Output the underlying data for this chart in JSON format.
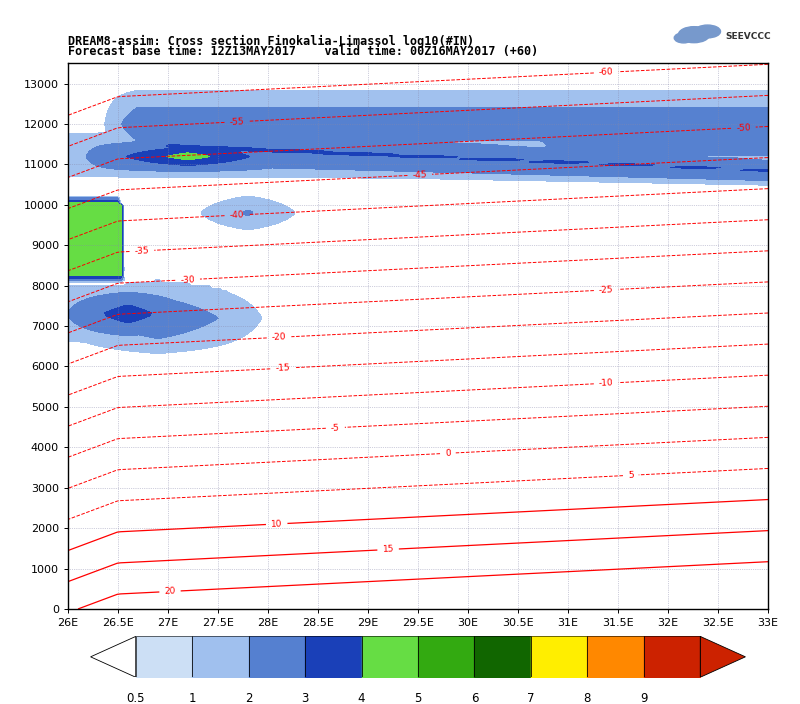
{
  "title_line1": "DREAM8-assim: Cross section Finokalia-Limassol log10(#IN)",
  "title_line2": "Forecast base time: 12Z13MAY2017    valid time: 00Z16MAY2017 (+60)",
  "x_min": 26.0,
  "x_max": 33.0,
  "y_min": 0,
  "y_max": 13500,
  "x_ticks": [
    26,
    26.5,
    27,
    27.5,
    28,
    28.5,
    29,
    29.5,
    30,
    30.5,
    31,
    31.5,
    32,
    32.5,
    33
  ],
  "x_tick_labels": [
    "26E",
    "26.5E",
    "27E",
    "27.5E",
    "28E",
    "28.5E",
    "29E",
    "29.5E",
    "30E",
    "30.5E",
    "31E",
    "31.5E",
    "32E",
    "32.5E",
    "33E"
  ],
  "y_ticks": [
    0,
    1000,
    2000,
    3000,
    4000,
    5000,
    6000,
    7000,
    8000,
    9000,
    10000,
    11000,
    12000,
    13000
  ],
  "levels": [
    0,
    0.5,
    1,
    2,
    3,
    4,
    5,
    6,
    7,
    8,
    9
  ],
  "cmap_colors": [
    "#ffffff",
    "#ccdff5",
    "#a0c0ee",
    "#5580d0",
    "#1a40b8",
    "#66dd44",
    "#33aa11",
    "#116600",
    "#ffee00",
    "#ff8800",
    "#cc2200"
  ],
  "temp_levels": [
    -60,
    -55,
    -50,
    -45,
    -40,
    -35,
    -30,
    -25,
    -20,
    -15,
    -10,
    -5,
    0,
    5,
    10,
    15,
    20
  ],
  "colorbar_segment_colors": [
    "#ccdff5",
    "#a0c0ee",
    "#5580d0",
    "#1a40b8",
    "#66dd44",
    "#33aa11",
    "#116600",
    "#ffee00",
    "#ff8800",
    "#cc2200"
  ],
  "colorbar_labels": [
    "0.5",
    "1",
    "2",
    "3",
    "4",
    "5",
    "6",
    "7",
    "8",
    "9"
  ]
}
